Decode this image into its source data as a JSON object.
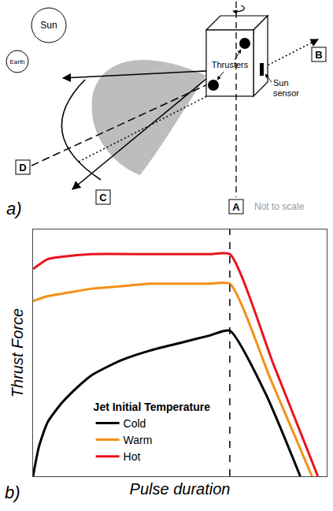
{
  "diagram": {
    "panel_labels": [
      "a)",
      "b)"
    ],
    "bodies": [
      {
        "label": "Sun"
      },
      {
        "label": "Earth"
      }
    ],
    "spacecraft": {
      "thrusters_label": "Thrusters",
      "sensor_label": "Sun sensor"
    },
    "axes_labels": [
      "A",
      "B",
      "C",
      "D"
    ],
    "note": "Not to scale"
  },
  "chart_data": {
    "type": "line",
    "x_label": "Pulse duration",
    "y_label": "Thrust Force",
    "legend_title": "Jet Initial Temperature",
    "legend": "lower left",
    "tick_labels": false,
    "grid": false,
    "xlim": [
      0,
      100
    ],
    "ylim": [
      0,
      100
    ],
    "xticks": [],
    "yticks": [],
    "pulse_end": 67,
    "series": [
      {
        "name": "Cold",
        "color": "#000000",
        "x": [
          0,
          2,
          5,
          10,
          15,
          20,
          30,
          40,
          50,
          60,
          67,
          79,
          91
        ],
        "values": [
          0,
          12,
          22,
          30,
          36,
          41,
          47,
          51,
          54,
          57,
          59,
          34,
          0
        ]
      },
      {
        "name": "Warm",
        "color": "#f39019",
        "x": [
          0,
          5,
          10,
          20,
          30,
          40,
          50,
          60,
          67,
          81,
          95
        ],
        "values": [
          71,
          73,
          74,
          76,
          77,
          78,
          78,
          78,
          78,
          39,
          0
        ]
      },
      {
        "name": "Hot",
        "color": "#e8141e",
        "x": [
          0,
          5,
          10,
          20,
          40,
          60,
          67,
          82,
          97
        ],
        "values": [
          84,
          88,
          89,
          90,
          90,
          90,
          90,
          45,
          0
        ]
      }
    ]
  }
}
